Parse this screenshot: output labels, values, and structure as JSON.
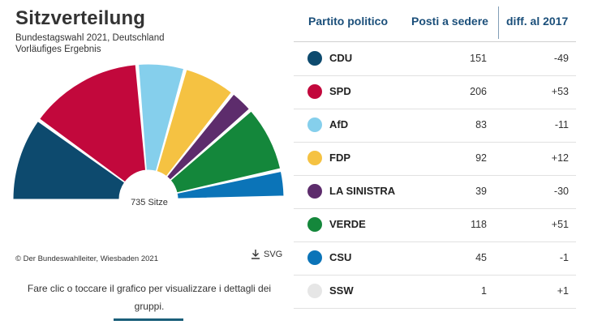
{
  "chart_data": {
    "type": "parliament-hemicycle",
    "title": "Sitzverteilung",
    "subtitle_lines": [
      "Bundestagswahl 2021, Deutschland",
      "Vorläufiges Ergebnis"
    ],
    "total_label": "735 Sitze",
    "total_seats": 735,
    "series": [
      {
        "name": "CDU",
        "seats": 151,
        "diff": "-49",
        "color": "#0d4a6e"
      },
      {
        "name": "SPD",
        "seats": 206,
        "diff": "+53",
        "color": "#c2083c"
      },
      {
        "name": "AfD",
        "seats": 83,
        "diff": "-11",
        "color": "#85cfec"
      },
      {
        "name": "FDP",
        "seats": 92,
        "diff": "+12",
        "color": "#f5c242"
      },
      {
        "name": "LA SINISTRA",
        "seats": 39,
        "diff": "-30",
        "color": "#5d2c6c"
      },
      {
        "name": "VERDE",
        "seats": 118,
        "diff": "+51",
        "color": "#14873b"
      },
      {
        "name": "CSU",
        "seats": 45,
        "diff": "-1",
        "color": "#0b74b8"
      },
      {
        "name": "SSW",
        "seats": 1,
        "diff": "+1",
        "color": "#e6e6e6"
      }
    ]
  },
  "footer": {
    "credit": "© Der Bundeswahlleiter, Wiesbaden 2021",
    "svg_label": "SVG",
    "hint": "Fare clic o toccare il grafico per visualizzare i dettagli dei gruppi."
  },
  "table": {
    "headers": {
      "party": "Partito politico",
      "seats": "Posti a sedere",
      "diff": "diff. al 2017"
    }
  },
  "icons": {
    "download": "download-icon"
  },
  "colors": {
    "header_text": "#1b4f7a",
    "accent_line": "#1b5f7a"
  }
}
